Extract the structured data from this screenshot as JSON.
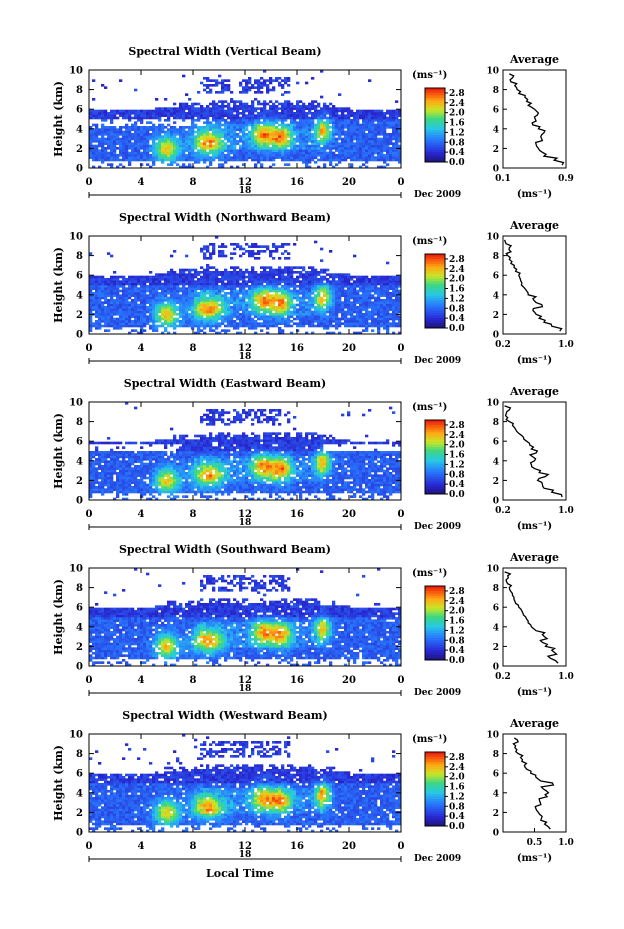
{
  "figure": {
    "x_common_label": "Local Time",
    "date_label": "Dec 2009",
    "mid_marker_label": "18",
    "colorbar_unit": "(ms⁻¹)",
    "average_title": "Average",
    "average_xlabel": "(ms⁻¹)",
    "colors": {
      "low": "#1a1aa0",
      "mid": "#2ecc8a",
      "high": "#ff1a00"
    }
  },
  "chart_data": [
    {
      "type": "heatmap",
      "title": "Spectral Width (Vertical Beam)",
      "ylabel": "Height (km)",
      "xlabel": "",
      "x_ticks": [
        "0",
        "4",
        "8",
        "12",
        "16",
        "20",
        "0"
      ],
      "x_tick_values": [
        0,
        4,
        8,
        12,
        16,
        20,
        24
      ],
      "y_ticks": [
        "0",
        "2",
        "4",
        "6",
        "8",
        "10"
      ],
      "xlim": [
        0,
        24
      ],
      "ylim": [
        0,
        10
      ],
      "colorbar_ticks": [
        "2.8",
        "2.4",
        "2.0",
        "1.6",
        "1.2",
        "0.8",
        "0.4",
        "0.0"
      ],
      "colorbar_range": [
        0,
        3.0
      ],
      "average": {
        "x_ticks": [
          "0.1",
          "0.9"
        ],
        "x_tick_values": [
          0.1,
          0.9
        ],
        "y_ticks": [
          "0",
          "2",
          "4",
          "6",
          "8",
          "10"
        ],
        "xlim": [
          0.1,
          0.9
        ],
        "profile_height": [
          0.3,
          0.8,
          1.2,
          1.6,
          2.0,
          2.4,
          2.8,
          3.2,
          3.6,
          4.0,
          4.4,
          4.8,
          5.2,
          5.6,
          6.0,
          6.4,
          6.8,
          7.2,
          7.6,
          8.0,
          8.4,
          8.8,
          9.2,
          9.6
        ],
        "profile_value": [
          0.85,
          0.75,
          0.62,
          0.6,
          0.55,
          0.52,
          0.6,
          0.58,
          0.62,
          0.55,
          0.48,
          0.52,
          0.5,
          0.55,
          0.5,
          0.42,
          0.4,
          0.38,
          0.3,
          0.28,
          0.25,
          0.2,
          0.22,
          0.18
        ]
      }
    },
    {
      "type": "heatmap",
      "title": "Spectral Width (Northward Beam)",
      "ylabel": "Height (km)",
      "xlabel": "",
      "x_ticks": [
        "0",
        "4",
        "8",
        "12",
        "16",
        "20",
        "0"
      ],
      "x_tick_values": [
        0,
        4,
        8,
        12,
        16,
        20,
        24
      ],
      "y_ticks": [
        "0",
        "2",
        "4",
        "6",
        "8",
        "10"
      ],
      "xlim": [
        0,
        24
      ],
      "ylim": [
        0,
        10
      ],
      "colorbar_ticks": [
        "2.8",
        "2.4",
        "2.0",
        "1.6",
        "1.2",
        "0.8",
        "0.4",
        "0.0"
      ],
      "colorbar_range": [
        0,
        3.0
      ],
      "average": {
        "x_ticks": [
          "0.2",
          "1.0"
        ],
        "x_tick_values": [
          0.2,
          1.0
        ],
        "y_ticks": [
          "0",
          "2",
          "4",
          "6",
          "8",
          "10"
        ],
        "xlim": [
          0.2,
          1.0
        ],
        "profile_height": [
          0.3,
          0.8,
          1.2,
          1.6,
          2.0,
          2.4,
          2.8,
          3.2,
          3.6,
          4.0,
          4.4,
          4.8,
          5.2,
          5.6,
          6.0,
          6.4,
          6.8,
          7.2,
          7.6,
          8.0,
          8.4,
          8.8,
          9.2,
          9.6
        ],
        "profile_value": [
          0.92,
          0.82,
          0.72,
          0.66,
          0.62,
          0.58,
          0.7,
          0.62,
          0.58,
          0.52,
          0.5,
          0.46,
          0.44,
          0.42,
          0.4,
          0.36,
          0.34,
          0.3,
          0.28,
          0.26,
          0.3,
          0.28,
          0.24,
          0.22
        ]
      }
    },
    {
      "type": "heatmap",
      "title": "Spectral Width (Eastward Beam)",
      "ylabel": "Height (km)",
      "xlabel": "",
      "x_ticks": [
        "0",
        "4",
        "8",
        "12",
        "16",
        "20",
        "0"
      ],
      "x_tick_values": [
        0,
        4,
        8,
        12,
        16,
        20,
        24
      ],
      "y_ticks": [
        "0",
        "2",
        "4",
        "6",
        "8",
        "10"
      ],
      "xlim": [
        0,
        24
      ],
      "ylim": [
        0,
        10
      ],
      "colorbar_ticks": [
        "2.8",
        "2.4",
        "2.0",
        "1.6",
        "1.2",
        "0.8",
        "0.4",
        "0.0"
      ],
      "colorbar_range": [
        0,
        3.0
      ],
      "average": {
        "x_ticks": [
          "0.2",
          "1.0"
        ],
        "x_tick_values": [
          0.2,
          1.0
        ],
        "y_ticks": [
          "0",
          "2",
          "4",
          "6",
          "8",
          "10"
        ],
        "xlim": [
          0.2,
          1.0
        ],
        "profile_height": [
          0.3,
          0.8,
          1.2,
          1.6,
          2.0,
          2.4,
          2.8,
          3.2,
          3.6,
          4.0,
          4.4,
          4.8,
          5.2,
          5.6,
          6.0,
          6.4,
          6.8,
          7.2,
          7.6,
          8.0,
          8.4,
          8.8,
          9.2,
          9.6
        ],
        "profile_value": [
          0.95,
          0.82,
          0.72,
          0.7,
          0.64,
          0.74,
          0.66,
          0.6,
          0.56,
          0.6,
          0.58,
          0.62,
          0.56,
          0.54,
          0.5,
          0.46,
          0.4,
          0.36,
          0.32,
          0.28,
          0.26,
          0.24,
          0.28,
          0.22
        ]
      }
    },
    {
      "type": "heatmap",
      "title": "Spectral Width (Southward Beam)",
      "ylabel": "Height (km)",
      "xlabel": "",
      "x_ticks": [
        "0",
        "4",
        "8",
        "12",
        "16",
        "20",
        "0"
      ],
      "x_tick_values": [
        0,
        4,
        8,
        12,
        16,
        20,
        24
      ],
      "y_ticks": [
        "0",
        "2",
        "4",
        "6",
        "8",
        "10"
      ],
      "xlim": [
        0,
        24
      ],
      "ylim": [
        0,
        10
      ],
      "colorbar_ticks": [
        "2.8",
        "2.4",
        "2.0",
        "1.6",
        "1.2",
        "0.8",
        "0.4",
        "0.0"
      ],
      "colorbar_range": [
        0,
        3.0
      ],
      "average": {
        "x_ticks": [
          "0.2",
          "1.0"
        ],
        "x_tick_values": [
          0.2,
          1.0
        ],
        "y_ticks": [
          "0",
          "2",
          "4",
          "6",
          "8",
          "10"
        ],
        "xlim": [
          0.2,
          1.0
        ],
        "profile_height": [
          0.3,
          0.8,
          1.2,
          1.6,
          2.0,
          2.4,
          2.8,
          3.2,
          3.6,
          4.0,
          4.4,
          4.8,
          5.2,
          5.6,
          6.0,
          6.4,
          6.8,
          7.2,
          7.6,
          8.0,
          8.4,
          8.8,
          9.2,
          9.6
        ],
        "profile_value": [
          0.9,
          0.8,
          0.88,
          0.82,
          0.74,
          0.7,
          0.76,
          0.7,
          0.62,
          0.56,
          0.52,
          0.5,
          0.46,
          0.44,
          0.4,
          0.36,
          0.34,
          0.32,
          0.3,
          0.28,
          0.26,
          0.24,
          0.26,
          0.22
        ]
      }
    },
    {
      "type": "heatmap",
      "title": "Spectral Width (Westward Beam)",
      "ylabel": "Height (km)",
      "xlabel": "Local Time",
      "x_ticks": [
        "0",
        "4",
        "8",
        "12",
        "16",
        "20",
        "0"
      ],
      "x_tick_values": [
        0,
        4,
        8,
        12,
        16,
        20,
        24
      ],
      "y_ticks": [
        "0",
        "2",
        "4",
        "6",
        "8",
        "10"
      ],
      "xlim": [
        0,
        24
      ],
      "ylim": [
        0,
        10
      ],
      "colorbar_ticks": [
        "2.8",
        "2.4",
        "2.0",
        "1.6",
        "1.2",
        "0.8",
        "0.4",
        "0.0"
      ],
      "colorbar_range": [
        0,
        3.0
      ],
      "average": {
        "x_ticks": [
          "0.5",
          "1.0"
        ],
        "x_tick_values": [
          0.5,
          1.0
        ],
        "y_ticks": [
          "0",
          "2",
          "4",
          "6",
          "8",
          "10"
        ],
        "xlim": [
          0.0,
          1.0
        ],
        "profile_height": [
          0.3,
          0.8,
          1.2,
          1.6,
          2.0,
          2.4,
          2.8,
          3.2,
          3.6,
          4.0,
          4.4,
          4.8,
          5.2,
          5.6,
          6.0,
          6.4,
          6.8,
          7.2,
          7.6,
          8.0,
          8.4,
          8.8,
          9.2,
          9.6
        ],
        "profile_value": [
          0.75,
          0.66,
          0.6,
          0.62,
          0.56,
          0.52,
          0.6,
          0.58,
          0.7,
          0.72,
          0.64,
          0.8,
          0.6,
          0.52,
          0.44,
          0.38,
          0.34,
          0.3,
          0.28,
          0.24,
          0.22,
          0.2,
          0.24,
          0.18
        ]
      }
    }
  ]
}
